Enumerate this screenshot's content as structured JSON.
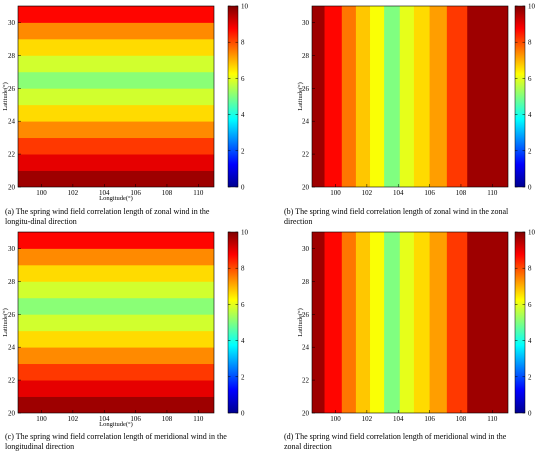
{
  "colorbar": {
    "ticks": [
      0,
      2,
      4,
      6,
      8,
      10
    ],
    "range": [
      0,
      10
    ],
    "colormap": "jet",
    "stops": [
      "#00008f",
      "#0000ff",
      "#0080ff",
      "#00ffff",
      "#80ff80",
      "#ffff00",
      "#ff8000",
      "#ff0000",
      "#800000"
    ]
  },
  "chart_data": [
    {
      "type": "heatmap",
      "orientation": "horizontal",
      "xlabel": "Longitude(°)",
      "ylabel": "Latitude(°)",
      "xlim": [
        98.5,
        111
      ],
      "ylim": [
        20,
        31
      ],
      "xticks": [
        100,
        102,
        104,
        106,
        108,
        110
      ],
      "yticks": [
        20,
        22,
        24,
        26,
        28,
        30
      ],
      "bands": [
        {
          "from": 20,
          "to": 21,
          "value": 9.7
        },
        {
          "from": 21,
          "to": 22,
          "value": 9.0
        },
        {
          "from": 22,
          "to": 23,
          "value": 8.2
        },
        {
          "from": 23,
          "to": 24,
          "value": 7.4
        },
        {
          "from": 24,
          "to": 25,
          "value": 6.6
        },
        {
          "from": 25,
          "to": 26,
          "value": 5.8
        },
        {
          "from": 26,
          "to": 27,
          "value": 5.1
        },
        {
          "from": 27,
          "to": 28,
          "value": 5.8
        },
        {
          "from": 28,
          "to": 29,
          "value": 6.6
        },
        {
          "from": 29,
          "to": 30,
          "value": 7.4
        },
        {
          "from": 30,
          "to": 31,
          "value": 8.7
        },
        {
          "from": 31,
          "to": 32,
          "value": 9.7
        }
      ],
      "caption": "(a) The spring wind field correlation length of zonal wind in the longitu-dinal direction"
    },
    {
      "type": "heatmap",
      "orientation": "vertical",
      "xlabel": "",
      "ylabel": "Latitude(°)",
      "xlim": [
        98.5,
        111
      ],
      "ylim": [
        20,
        31
      ],
      "xticks": [
        100,
        102,
        104,
        106,
        108,
        110
      ],
      "yticks": [
        20,
        22,
        24,
        26,
        28,
        30
      ],
      "bands": [
        {
          "from": 98.5,
          "to": 99.3,
          "value": 9.7
        },
        {
          "from": 99.3,
          "to": 100.4,
          "value": 8.7
        },
        {
          "from": 100.4,
          "to": 101.3,
          "value": 7.6
        },
        {
          "from": 101.3,
          "to": 102.2,
          "value": 6.8
        },
        {
          "from": 102.2,
          "to": 103.1,
          "value": 6.2
        },
        {
          "from": 103.1,
          "to": 104.1,
          "value": 5.0
        },
        {
          "from": 104.1,
          "to": 105.0,
          "value": 6.0
        },
        {
          "from": 105.0,
          "to": 106.0,
          "value": 6.6
        },
        {
          "from": 106.0,
          "to": 107.1,
          "value": 7.2
        },
        {
          "from": 107.1,
          "to": 108.4,
          "value": 8.2
        },
        {
          "from": 108.4,
          "to": 111.0,
          "value": 9.7
        }
      ],
      "caption": "(b) The spring wind field correlation length of zonal wind  in the zonal direction"
    },
    {
      "type": "heatmap",
      "orientation": "horizontal",
      "xlabel": "Longitude(°)",
      "ylabel": "Latitude(°)",
      "xlim": [
        98.5,
        111
      ],
      "ylim": [
        20,
        31
      ],
      "xticks": [
        100,
        102,
        104,
        106,
        108,
        110
      ],
      "yticks": [
        20,
        22,
        24,
        26,
        28,
        30
      ],
      "bands": [
        {
          "from": 20,
          "to": 21,
          "value": 9.7
        },
        {
          "from": 21,
          "to": 22,
          "value": 9.0
        },
        {
          "from": 22,
          "to": 23,
          "value": 8.2
        },
        {
          "from": 23,
          "to": 24,
          "value": 7.4
        },
        {
          "from": 24,
          "to": 25,
          "value": 6.6
        },
        {
          "from": 25,
          "to": 26,
          "value": 5.8
        },
        {
          "from": 26,
          "to": 27,
          "value": 5.1
        },
        {
          "from": 27,
          "to": 28,
          "value": 5.8
        },
        {
          "from": 28,
          "to": 29,
          "value": 6.6
        },
        {
          "from": 29,
          "to": 30,
          "value": 7.4
        },
        {
          "from": 30,
          "to": 31,
          "value": 8.7
        },
        {
          "from": 31,
          "to": 32,
          "value": 9.7
        }
      ],
      "caption": "(c) The spring wind field correlation length of meridional wind in the longitudinal direction"
    },
    {
      "type": "heatmap",
      "orientation": "vertical",
      "xlabel": "",
      "ylabel": "Latitude(°)",
      "xlim": [
        98.5,
        111
      ],
      "ylim": [
        20,
        31
      ],
      "xticks": [
        100,
        102,
        104,
        106,
        108,
        110
      ],
      "yticks": [
        20,
        22,
        24,
        26,
        28,
        30
      ],
      "bands": [
        {
          "from": 98.5,
          "to": 99.3,
          "value": 9.7
        },
        {
          "from": 99.3,
          "to": 100.4,
          "value": 8.7
        },
        {
          "from": 100.4,
          "to": 101.3,
          "value": 7.6
        },
        {
          "from": 101.3,
          "to": 102.2,
          "value": 6.8
        },
        {
          "from": 102.2,
          "to": 103.1,
          "value": 6.2
        },
        {
          "from": 103.1,
          "to": 104.1,
          "value": 5.0
        },
        {
          "from": 104.1,
          "to": 105.0,
          "value": 6.0
        },
        {
          "from": 105.0,
          "to": 106.0,
          "value": 6.6
        },
        {
          "from": 106.0,
          "to": 107.1,
          "value": 7.2
        },
        {
          "from": 107.1,
          "to": 108.4,
          "value": 8.2
        },
        {
          "from": 108.4,
          "to": 111.0,
          "value": 9.7
        }
      ],
      "caption": "(d) The spring wind field correlation length of meridional wind in the zonal direction"
    }
  ]
}
